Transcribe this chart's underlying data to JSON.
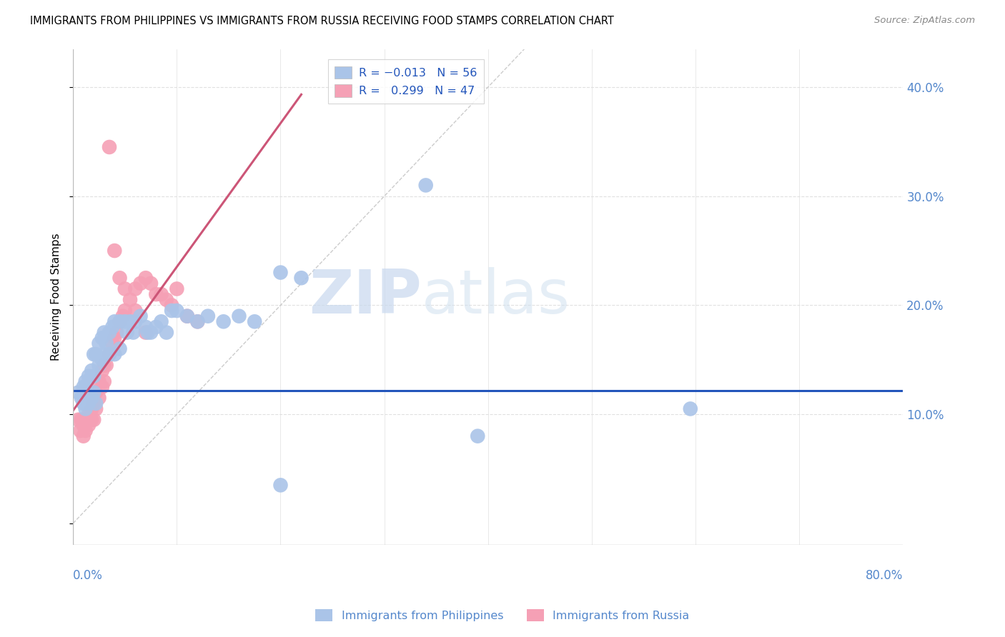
{
  "title": "IMMIGRANTS FROM PHILIPPINES VS IMMIGRANTS FROM RUSSIA RECEIVING FOOD STAMPS CORRELATION CHART",
  "source": "Source: ZipAtlas.com",
  "ylabel": "Receiving Food Stamps",
  "xlim": [
    0.0,
    0.8
  ],
  "ylim": [
    -0.02,
    0.435
  ],
  "color_blue": "#aac4e8",
  "color_pink": "#f5a0b5",
  "color_line_blue": "#2255bb",
  "color_line_pink": "#cc5577",
  "color_diagonal": "#cccccc",
  "color_grid": "#e0e0e0",
  "color_axis_labels": "#5588cc",
  "watermark_zip": "ZIP",
  "watermark_atlas": "atlas",
  "phil_x": [
    0.005,
    0.008,
    0.01,
    0.01,
    0.012,
    0.012,
    0.015,
    0.015,
    0.015,
    0.018,
    0.018,
    0.02,
    0.02,
    0.02,
    0.022,
    0.022,
    0.025,
    0.025,
    0.028,
    0.028,
    0.03,
    0.03,
    0.032,
    0.035,
    0.035,
    0.038,
    0.04,
    0.04,
    0.045,
    0.045,
    0.05,
    0.052,
    0.055,
    0.058,
    0.06,
    0.065,
    0.07,
    0.072,
    0.075,
    0.08,
    0.085,
    0.09,
    0.095,
    0.1,
    0.11,
    0.12,
    0.13,
    0.145,
    0.16,
    0.175,
    0.2,
    0.22,
    0.34,
    0.39,
    0.595,
    0.2
  ],
  "phil_y": [
    0.12,
    0.115,
    0.125,
    0.11,
    0.13,
    0.105,
    0.135,
    0.12,
    0.11,
    0.14,
    0.115,
    0.155,
    0.135,
    0.12,
    0.155,
    0.11,
    0.165,
    0.145,
    0.17,
    0.15,
    0.175,
    0.155,
    0.165,
    0.175,
    0.155,
    0.18,
    0.185,
    0.155,
    0.185,
    0.16,
    0.185,
    0.175,
    0.185,
    0.175,
    0.185,
    0.19,
    0.18,
    0.175,
    0.175,
    0.18,
    0.185,
    0.175,
    0.195,
    0.195,
    0.19,
    0.185,
    0.19,
    0.185,
    0.19,
    0.185,
    0.23,
    0.225,
    0.31,
    0.08,
    0.105,
    0.035
  ],
  "russ_x": [
    0.005,
    0.007,
    0.008,
    0.01,
    0.01,
    0.012,
    0.012,
    0.015,
    0.015,
    0.018,
    0.018,
    0.02,
    0.02,
    0.022,
    0.022,
    0.025,
    0.025,
    0.028,
    0.028,
    0.03,
    0.03,
    0.032,
    0.035,
    0.038,
    0.04,
    0.042,
    0.045,
    0.048,
    0.05,
    0.055,
    0.06,
    0.065,
    0.07,
    0.075,
    0.08,
    0.085,
    0.09,
    0.095,
    0.1,
    0.11,
    0.12,
    0.035,
    0.04,
    0.045,
    0.05,
    0.06,
    0.07
  ],
  "russ_y": [
    0.095,
    0.085,
    0.095,
    0.09,
    0.08,
    0.095,
    0.085,
    0.1,
    0.09,
    0.105,
    0.095,
    0.11,
    0.095,
    0.12,
    0.105,
    0.13,
    0.115,
    0.14,
    0.125,
    0.145,
    0.13,
    0.145,
    0.155,
    0.165,
    0.17,
    0.175,
    0.185,
    0.19,
    0.195,
    0.205,
    0.215,
    0.22,
    0.225,
    0.22,
    0.21,
    0.21,
    0.205,
    0.2,
    0.215,
    0.19,
    0.185,
    0.345,
    0.25,
    0.225,
    0.215,
    0.195,
    0.175
  ],
  "ytick_vals": [
    0.1,
    0.2,
    0.3,
    0.4
  ],
  "ytick_labels": [
    "10.0%",
    "20.0%",
    "30.0%",
    "40.0%"
  ],
  "xtick_vals": [
    0.0,
    0.1,
    0.2,
    0.3,
    0.4,
    0.5,
    0.6,
    0.7,
    0.8
  ]
}
